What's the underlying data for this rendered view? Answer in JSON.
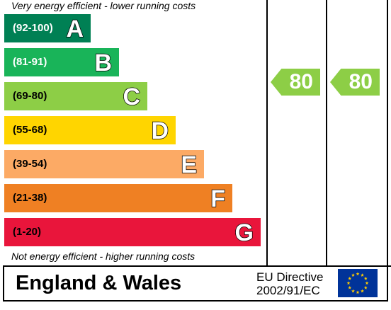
{
  "top_caption": "Very energy efficient - lower running costs",
  "bottom_caption": "Not energy efficient - higher running costs",
  "bands": [
    {
      "range": "(92-100)",
      "letter": "A",
      "color": "#008054",
      "text_color": "#ffffff"
    },
    {
      "range": "(81-91)",
      "letter": "B",
      "color": "#19b459",
      "text_color": "#ffffff"
    },
    {
      "range": "(69-80)",
      "letter": "C",
      "color": "#8dce46",
      "text_color": "#000000"
    },
    {
      "range": "(55-68)",
      "letter": "D",
      "color": "#ffd500",
      "text_color": "#000000"
    },
    {
      "range": "(39-54)",
      "letter": "E",
      "color": "#fcaa65",
      "text_color": "#000000"
    },
    {
      "range": "(21-38)",
      "letter": "F",
      "color": "#ef8023",
      "text_color": "#000000"
    },
    {
      "range": "(1-20)",
      "letter": "G",
      "color": "#e9153b",
      "text_color": "#000000"
    }
  ],
  "ratings": {
    "current": {
      "value": "80",
      "color": "#8dce46"
    },
    "potential": {
      "value": "80",
      "color": "#8dce46"
    }
  },
  "footer": {
    "region": "England & Wales",
    "directive_line1": "EU Directive",
    "directive_line2": "2002/91/EC",
    "flag_icon": "eu-flag-icon",
    "flag_color": "#003399",
    "star_color": "#ffcc00"
  }
}
